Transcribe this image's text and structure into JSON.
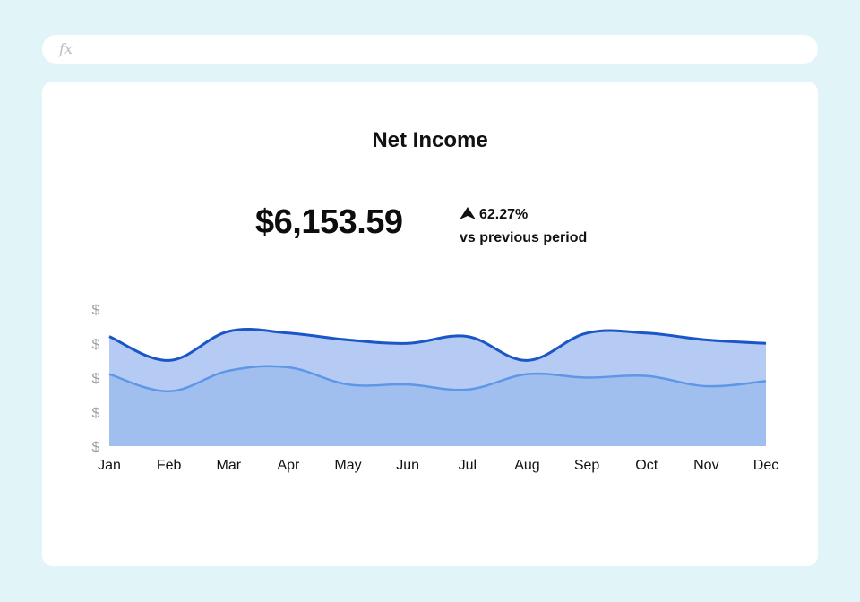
{
  "formula_bar": {
    "icon": "fx-icon",
    "label": "fx"
  },
  "card": {
    "kpi_value": "$6,153.59",
    "kpi_change": "62.27%",
    "kpi_change_direction": "up",
    "kpi_sub": "vs previous period"
  },
  "chart_data": {
    "type": "area",
    "title": "Net Income",
    "categories": [
      "Jan",
      "Feb",
      "Mar",
      "Apr",
      "May",
      "Jun",
      "Jul",
      "Aug",
      "Sep",
      "Oct",
      "Nov",
      "Dec"
    ],
    "yticks": [
      "$",
      "$",
      "$",
      "$",
      "$"
    ],
    "ylim": [
      0,
      4
    ],
    "series": [
      {
        "values": [
          3.2,
          2.5,
          3.35,
          3.3,
          3.1,
          3.0,
          3.2,
          2.5,
          3.3,
          3.3,
          3.1,
          3.0
        ],
        "color": "#1a56c8",
        "fill": "#b5cbf3"
      },
      {
        "values": [
          2.1,
          1.6,
          2.2,
          2.3,
          1.8,
          1.8,
          1.65,
          2.1,
          2.0,
          2.05,
          1.75,
          1.9
        ],
        "color": "#5f97e8",
        "fill": "#a1bfee"
      }
    ],
    "grid": false,
    "legend": "none"
  }
}
